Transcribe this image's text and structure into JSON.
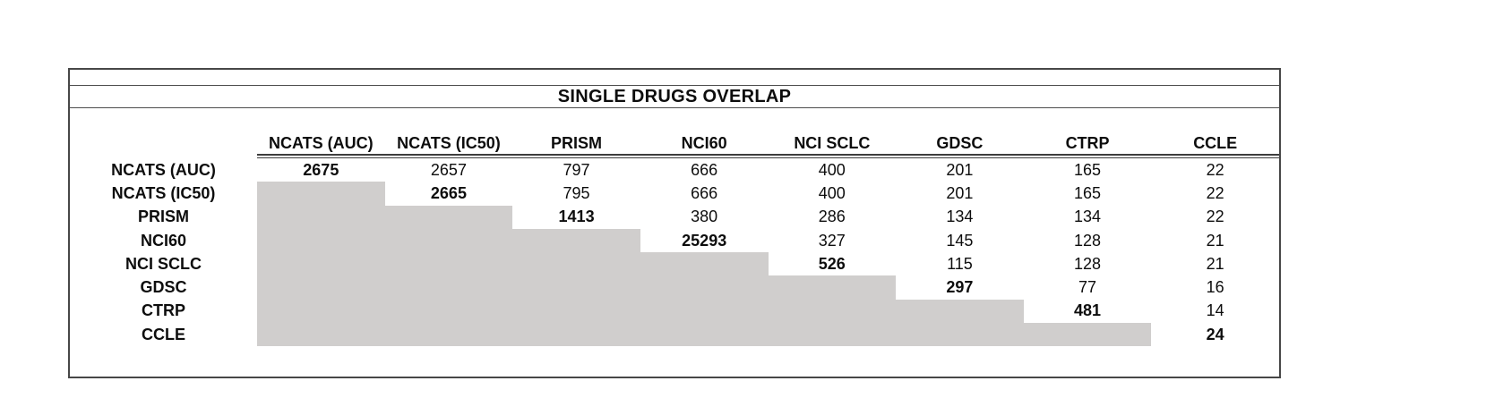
{
  "window": {
    "background": "#ffffff"
  },
  "chart_data": {
    "type": "table",
    "title": "SINGLE DRUGS OVERLAP",
    "col_labels": [
      "NCATS (AUC)",
      "NCATS (IC50)",
      "PRISM",
      "NCI60",
      "NCI SCLC",
      "GDSC",
      "CTRP",
      "CCLE"
    ],
    "row_labels": [
      "NCATS (AUC)",
      "NCATS (IC50)",
      "PRISM",
      "NCI60",
      "NCI SCLC",
      "GDSC",
      "CTRP",
      "CCLE"
    ],
    "matrix": [
      [
        2675,
        2657,
        797,
        666,
        400,
        201,
        165,
        22
      ],
      [
        null,
        2665,
        795,
        666,
        400,
        201,
        165,
        22
      ],
      [
        null,
        null,
        1413,
        380,
        286,
        134,
        134,
        22
      ],
      [
        null,
        null,
        null,
        25293,
        327,
        145,
        128,
        21
      ],
      [
        null,
        null,
        null,
        null,
        526,
        115,
        128,
        21
      ],
      [
        null,
        null,
        null,
        null,
        null,
        297,
        77,
        16
      ],
      [
        null,
        null,
        null,
        null,
        null,
        null,
        481,
        14
      ],
      [
        null,
        null,
        null,
        null,
        null,
        null,
        null,
        24
      ]
    ],
    "layout_hints": {
      "diagonal_bold": true,
      "lower_triangle_shaded": true,
      "header_double_underline": true
    },
    "colors": {
      "shade": "#d0cecd",
      "border": "#474747",
      "text": "#0d0d0d"
    }
  }
}
